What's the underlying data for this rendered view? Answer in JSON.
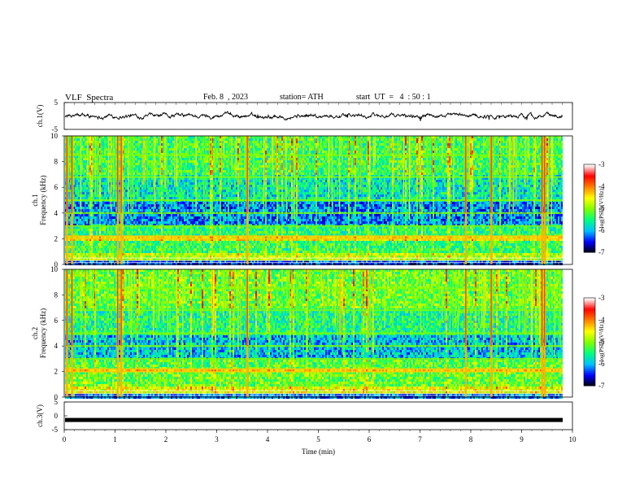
{
  "header": {
    "title": "VLF  Spectra",
    "date": "Feb. 8  , 2023",
    "station": "station= ATH",
    "start": "start  UT  =   4  : 50 : 1"
  },
  "chart_data": [
    {
      "type": "line",
      "name": "ch1-waveform",
      "ylabel": "ch.1(V)",
      "ylim": [
        -5,
        5
      ],
      "yticks": [
        "5",
        "-5"
      ],
      "xlim": [
        0,
        10
      ],
      "approx_level": 0,
      "approx_amplitude": 1.0,
      "trace_end_min": 9.8
    },
    {
      "type": "heatmap",
      "name": "ch1-spectrogram",
      "ylabel": "ch.1\nFrequency (kHz)",
      "xlabel": "",
      "xlim": [
        0,
        9.8
      ],
      "ylim": [
        0,
        10
      ],
      "yticks": [
        "0",
        "2",
        "4",
        "6",
        "8",
        "10"
      ],
      "colorbar": {
        "label": "log(PSD)(V²/Hz)",
        "range": [
          -7,
          -3
        ],
        "ticks": [
          "-3",
          "-4",
          "-5",
          "-6",
          "-7"
        ],
        "colors": [
          "#000000",
          "#0000ff",
          "#00c0ff",
          "#00ff80",
          "#80ff00",
          "#ffff00",
          "#ff8000",
          "#ff0000",
          "#ffffff"
        ]
      },
      "strong_sferic_times_min": [
        0.05,
        0.15,
        1.05,
        1.12,
        3.6,
        7.9,
        8.4,
        9.4,
        9.45
      ],
      "horizontal_bands_khz": [
        2.0,
        2.2,
        3.0,
        4.0,
        5.0,
        6.8,
        8.5
      ]
    },
    {
      "type": "heatmap",
      "name": "ch2-spectrogram",
      "ylabel": "ch.2\nFrequency (kHz)",
      "xlabel": "",
      "xlim": [
        0,
        9.8
      ],
      "ylim": [
        0,
        10
      ],
      "yticks": [
        "0",
        "2",
        "4",
        "6",
        "8",
        "10"
      ],
      "colorbar": {
        "label": "log(PSD)(V²/Hz)",
        "range": [
          -7,
          -3
        ],
        "ticks": [
          "-3",
          "-4",
          "-5",
          "-6",
          "-7"
        ],
        "colors": [
          "#000000",
          "#0000ff",
          "#00c0ff",
          "#00ff80",
          "#80ff00",
          "#ffff00",
          "#ff8000",
          "#ff0000",
          "#ffffff"
        ]
      },
      "strong_sferic_times_min": [
        0.05,
        0.15,
        1.05,
        1.12,
        3.6,
        7.9,
        8.4,
        9.4,
        9.45
      ],
      "horizontal_bands_khz": [
        2.0,
        2.2,
        3.0,
        4.0,
        5.0,
        6.8,
        8.5
      ]
    },
    {
      "type": "line",
      "name": "ch3-waveform",
      "ylabel": "ch.3(V)",
      "xlabel": "Time  (min)",
      "xlim": [
        0,
        10
      ],
      "xticks": [
        "0",
        "1",
        "2",
        "3",
        "4",
        "5",
        "6",
        "7",
        "8",
        "9",
        "10"
      ],
      "ylim": [
        -5,
        5
      ],
      "yticks": [
        "5",
        "0",
        "-5"
      ],
      "approx_level": -1.5,
      "trace_end_min": 9.8
    }
  ]
}
